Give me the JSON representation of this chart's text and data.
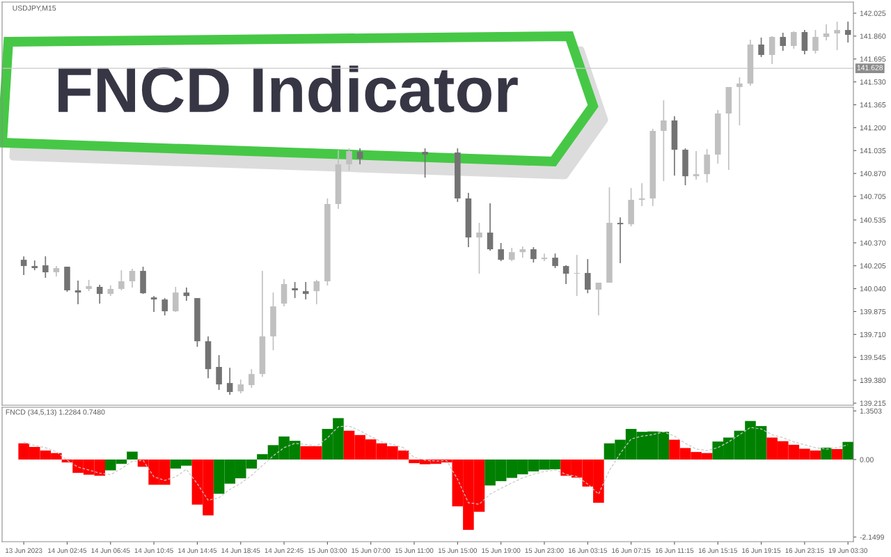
{
  "chart_data": [
    {
      "type": "candlestick",
      "title": "USDJPY,M15",
      "annotations": [
        "FNCD Indicator"
      ],
      "categories": [
        null,
        null,
        null,
        null,
        null,
        null,
        null,
        null,
        null,
        null,
        null,
        null,
        null,
        null,
        null,
        null,
        null,
        null,
        null,
        null,
        null,
        null,
        null,
        null,
        null,
        null,
        null,
        null,
        null,
        null,
        null,
        null,
        null,
        null,
        null,
        null,
        null,
        null,
        null,
        null,
        null,
        null,
        null,
        null,
        null,
        null,
        null,
        null,
        null,
        null,
        null,
        null,
        null,
        null,
        null,
        null,
        null,
        null,
        null,
        null,
        null,
        null,
        null,
        null,
        null,
        null,
        null,
        null,
        null,
        null,
        null,
        null,
        null,
        null,
        null,
        null,
        null
      ],
      "ohlc": [
        [
          140.248,
          140.273,
          140.138,
          140.203
        ],
        [
          140.203,
          140.243,
          140.173,
          140.188
        ],
        [
          140.208,
          140.273,
          140.118,
          140.158
        ],
        [
          140.158,
          140.203,
          140.128,
          140.188
        ],
        [
          140.198,
          140.198,
          140.017,
          140.028
        ],
        [
          140.028,
          140.098,
          139.927,
          140.012
        ],
        [
          140.038,
          140.103,
          140.022,
          140.058
        ],
        [
          140.053,
          140.068,
          139.932,
          140.002
        ],
        [
          140.002,
          140.063,
          139.987,
          140.038
        ],
        [
          140.038,
          140.173,
          140.028,
          140.093
        ],
        [
          140.093,
          140.183,
          140.048,
          140.168
        ],
        [
          140.168,
          140.198,
          140.002,
          140.007
        ],
        [
          139.977,
          139.987,
          139.872,
          139.962
        ],
        [
          139.962,
          139.972,
          139.847,
          139.877
        ],
        [
          139.877,
          140.053,
          139.872,
          140.012
        ],
        [
          140.012,
          140.048,
          139.952,
          139.987
        ],
        [
          139.972,
          139.972,
          139.621,
          139.661
        ],
        [
          139.661,
          139.696,
          139.395,
          139.46
        ],
        [
          139.476,
          139.561,
          139.31,
          139.35
        ],
        [
          139.36,
          139.47,
          139.275,
          139.295
        ],
        [
          139.3,
          139.385,
          139.285,
          139.35
        ],
        [
          139.345,
          139.46,
          139.325,
          139.425
        ],
        [
          139.425,
          140.168,
          139.405,
          139.696
        ],
        [
          139.696,
          140.012,
          139.596,
          139.912
        ],
        [
          139.932,
          140.108,
          139.912,
          140.073
        ],
        [
          140.043,
          140.088,
          139.972,
          140.028
        ],
        [
          140.022,
          140.088,
          139.962,
          140.002
        ],
        [
          140.022,
          140.103,
          139.927,
          140.093
        ],
        [
          140.093,
          140.69,
          140.063,
          140.65
        ],
        [
          140.65,
          141.036,
          140.615,
          140.936
        ],
        [
          140.936,
          141.051,
          140.891,
          141.031
        ],
        [
          141.026,
          141.051,
          140.936,
          140.976
        ],
        null,
        null,
        null,
        null,
        null,
        [
          141.026,
          141.051,
          140.84,
          141.006
        ],
        null,
        null,
        [
          141.021,
          141.051,
          140.665,
          140.69
        ],
        [
          140.69,
          140.73,
          140.339,
          140.409
        ],
        [
          140.409,
          140.514,
          140.148,
          140.444
        ],
        [
          140.444,
          140.655,
          140.314,
          140.324
        ],
        [
          140.324,
          140.369,
          140.238,
          140.248
        ],
        [
          140.248,
          140.334,
          140.238,
          140.303
        ],
        [
          140.303,
          140.344,
          140.263,
          140.324
        ],
        [
          140.324,
          140.339,
          140.228,
          140.253
        ],
        [
          140.253,
          140.293,
          140.238,
          140.263
        ],
        [
          140.263,
          140.293,
          140.188,
          140.203
        ],
        [
          140.203,
          140.208,
          140.073,
          140.148
        ],
        [
          140.148,
          140.283,
          139.987,
          140.153
        ],
        [
          140.153,
          140.253,
          140.007,
          140.033
        ],
        [
          140.033,
          140.083,
          139.847,
          140.083
        ],
        [
          140.083,
          140.77,
          140.083,
          140.514
        ],
        [
          140.514,
          140.554,
          140.223,
          140.504
        ],
        [
          140.504,
          140.765,
          140.489,
          140.68
        ],
        [
          140.68,
          140.8,
          140.635,
          140.69
        ],
        [
          140.69,
          141.192,
          140.635,
          141.177
        ],
        [
          141.177,
          141.397,
          140.815,
          141.252
        ],
        [
          141.252,
          141.282,
          140.855,
          141.041
        ],
        [
          141.041,
          141.051,
          140.785,
          140.85
        ],
        [
          140.85,
          141.031,
          140.825,
          140.865
        ],
        [
          140.865,
          141.046,
          140.805,
          141.006
        ],
        [
          141.006,
          141.327,
          140.941,
          141.302
        ],
        [
          141.302,
          141.493,
          140.896,
          141.493
        ],
        [
          141.493,
          141.563,
          141.217,
          141.518
        ],
        [
          141.518,
          141.834,
          141.503,
          141.799
        ],
        [
          141.799,
          141.849,
          141.709,
          141.724
        ],
        [
          141.724,
          141.859,
          141.658,
          141.854
        ],
        [
          141.854,
          141.884,
          141.754,
          141.789
        ],
        [
          141.789,
          141.894,
          141.769,
          141.889
        ],
        [
          141.889,
          141.904,
          141.729,
          141.754
        ],
        [
          141.754,
          141.904,
          141.734,
          141.854
        ],
        [
          141.854,
          141.944,
          141.829,
          141.879
        ],
        [
          141.879,
          141.964,
          141.759,
          141.904
        ],
        [
          141.904,
          141.964,
          141.814,
          141.869
        ]
      ],
      "colors": [
        "#737373",
        "#737373",
        "#737373",
        "#c0c0c0",
        "#737373",
        "#737373",
        "#c0c0c0",
        "#737373",
        "#c0c0c0",
        "#c0c0c0",
        "#c0c0c0",
        "#737373",
        "#737373",
        "#737373",
        "#c0c0c0",
        "#737373",
        "#737373",
        "#737373",
        "#737373",
        "#737373",
        "#c0c0c0",
        "#c0c0c0",
        "#c0c0c0",
        "#c0c0c0",
        "#c0c0c0",
        "#737373",
        "#737373",
        "#c0c0c0",
        "#c0c0c0",
        "#c0c0c0",
        "#c0c0c0",
        "#737373",
        null,
        null,
        null,
        null,
        null,
        "#737373",
        null,
        null,
        "#737373",
        "#737373",
        "#c0c0c0",
        "#737373",
        "#737373",
        "#c0c0c0",
        "#c0c0c0",
        "#737373",
        "#c0c0c0",
        "#737373",
        "#737373",
        "#c0c0c0",
        "#737373",
        "#c0c0c0",
        "#c0c0c0",
        "#737373",
        "#c0c0c0",
        "#c0c0c0",
        "#c0c0c0",
        "#c0c0c0",
        "#737373",
        "#737373",
        "#c0c0c0",
        "#c0c0c0",
        "#c0c0c0",
        "#c0c0c0",
        "#c0c0c0",
        "#c0c0c0",
        "#737373",
        "#c0c0c0",
        "#737373",
        "#c0c0c0",
        "#737373",
        "#c0c0c0",
        "#c0c0c0",
        "#c0c0c0",
        "#737373"
      ],
      "ylim": [
        139.2,
        142.105
      ],
      "yticks": [
        {
          "value": 142.025,
          "label": "142.025"
        },
        {
          "value": 141.86,
          "label": "141.860"
        },
        {
          "value": 141.695,
          "label": "141.695"
        },
        {
          "value": 141.53,
          "label": "141.530"
        },
        {
          "value": 141.365,
          "label": "141.365"
        },
        {
          "value": 141.2,
          "label": "141.200"
        },
        {
          "value": 141.035,
          "label": "141.035"
        },
        {
          "value": 140.87,
          "label": "140.870"
        },
        {
          "value": 140.705,
          "label": "140.705"
        },
        {
          "value": 140.535,
          "label": "140.535"
        },
        {
          "value": 140.37,
          "label": "140.370"
        },
        {
          "value": 140.205,
          "label": "140.205"
        },
        {
          "value": 140.04,
          "label": "140.040"
        },
        {
          "value": 139.875,
          "label": "139.875"
        },
        {
          "value": 139.71,
          "label": "139.710"
        },
        {
          "value": 139.545,
          "label": "139.545"
        },
        {
          "value": 139.38,
          "label": "139.380"
        },
        {
          "value": 139.215,
          "label": "139.215"
        }
      ],
      "ref_lines": [
        {
          "axis": "y",
          "value": 141.628,
          "label": "141.628",
          "color": "#c8c8c8"
        }
      ],
      "tick_labels": "y"
    },
    {
      "type": "bar",
      "annotations": [
        "FNCD (34,5,13) 1.2284 0.7480"
      ],
      "categories": [
        "13 Jun 2023",
        null,
        null,
        null,
        "14 Jun 02:45",
        null,
        null,
        null,
        "14 Jun 06:45",
        null,
        null,
        null,
        "14 Jun 10:45",
        null,
        null,
        null,
        "14 Jun 14:45",
        null,
        null,
        null,
        "14 Jun 18:45",
        null,
        null,
        null,
        "14 Jun 22:45",
        null,
        null,
        null,
        "15 Jun 03:00",
        null,
        null,
        null,
        "15 Jun 07:00",
        null,
        null,
        null,
        "15 Jun 11:00",
        null,
        null,
        null,
        "15 Jun 15:00",
        null,
        null,
        null,
        "15 Jun 19:00",
        null,
        null,
        null,
        "15 Jun 23:00",
        null,
        null,
        null,
        "16 Jun 03:15",
        null,
        null,
        null,
        "16 Jun 07:15",
        null,
        null,
        null,
        "16 Jun 11:15",
        null,
        null,
        null,
        "16 Jun 15:15",
        null,
        null,
        null,
        "16 Jun 19:15",
        null,
        null,
        null,
        "16 Jun 23:15",
        null,
        null,
        null,
        "19 Jun 03:30"
      ],
      "series": [
        {
          "type": "bar",
          "values": [
            0.45,
            0.35,
            0.25,
            0.18,
            -0.08,
            -0.37,
            -0.42,
            -0.45,
            -0.3,
            -0.12,
            0.22,
            -0.2,
            -0.7,
            -0.7,
            -0.25,
            -0.17,
            -1.25,
            -1.55,
            -0.95,
            -0.67,
            -0.52,
            -0.25,
            0.15,
            0.4,
            0.64,
            0.52,
            0.37,
            0.37,
            0.85,
            1.15,
            0.8,
            0.68,
            0.56,
            0.45,
            0.37,
            0.25,
            -0.1,
            -0.13,
            -0.12,
            -0.08,
            -1.3,
            -1.95,
            -1.45,
            -0.72,
            -0.6,
            -0.51,
            -0.41,
            -0.33,
            -0.28,
            -0.27,
            -0.45,
            -0.5,
            -0.75,
            -1.2,
            0.45,
            0.55,
            0.85,
            0.77,
            0.78,
            0.77,
            0.55,
            0.32,
            0.21,
            0.18,
            0.5,
            0.61,
            0.8,
            1.07,
            0.93,
            0.61,
            0.51,
            0.41,
            0.3,
            0.25,
            0.33,
            0.29,
            0.49
          ],
          "colors": [
            "#ff0000",
            "#ff0000",
            "#ff0000",
            "#ff0000",
            "#ff0000",
            "#ff0000",
            "#ff0000",
            "#ff0000",
            "#008000",
            "#008000",
            "#008000",
            "#ff0000",
            "#ff0000",
            "#ff0000",
            "#008000",
            "#008000",
            "#ff0000",
            "#ff0000",
            "#008000",
            "#008000",
            "#008000",
            "#008000",
            "#008000",
            "#008000",
            "#008000",
            "#008000",
            "#ff0000",
            "#ff0000",
            "#008000",
            "#008000",
            "#ff0000",
            "#ff0000",
            "#ff0000",
            "#ff0000",
            "#ff0000",
            "#ff0000",
            "#ff0000",
            "#ff0000",
            "#ff0000",
            "#ff0000",
            "#ff0000",
            "#ff0000",
            "#ff0000",
            "#008000",
            "#008000",
            "#008000",
            "#008000",
            "#008000",
            "#008000",
            "#008000",
            "#ff0000",
            "#ff0000",
            "#ff0000",
            "#ff0000",
            "#008000",
            "#008000",
            "#008000",
            "#008000",
            "#008000",
            "#008000",
            "#ff0000",
            "#ff0000",
            "#ff0000",
            "#ff0000",
            "#008000",
            "#008000",
            "#008000",
            "#008000",
            "#008000",
            "#ff0000",
            "#ff0000",
            "#ff0000",
            "#ff0000",
            "#ff0000",
            "#008000",
            "#ff0000",
            "#008000"
          ]
        },
        {
          "type": "line",
          "color": "#c8c8c8",
          "line_style": "dashed",
          "values": [
            0.48,
            0.39,
            0.33,
            0.22,
            -0.02,
            -0.21,
            -0.29,
            -0.38,
            -0.42,
            -0.25,
            -0.05,
            -0.02,
            -0.48,
            -0.58,
            -0.48,
            -0.27,
            -0.67,
            -1.13,
            -1.06,
            -0.83,
            -0.66,
            -0.44,
            -0.17,
            0.1,
            0.33,
            0.45,
            0.42,
            0.37,
            0.6,
            0.91,
            0.93,
            0.8,
            0.64,
            0.49,
            0.42,
            0.33,
            0.06,
            -0.02,
            -0.04,
            -0.03,
            -0.55,
            -1.2,
            -1.24,
            -0.96,
            -0.8,
            -0.65,
            -0.51,
            -0.41,
            -0.33,
            -0.29,
            -0.41,
            -0.47,
            -0.68,
            -0.96,
            -0.3,
            0.17,
            0.57,
            0.65,
            0.69,
            0.77,
            0.65,
            0.45,
            0.29,
            0.25,
            0.33,
            0.49,
            0.69,
            0.89,
            0.85,
            0.69,
            0.61,
            0.49,
            0.41,
            0.33,
            0.29,
            0.33,
            0.41
          ]
        }
      ],
      "ylim": [
        -2.28,
        1.45
      ],
      "yticks": [
        {
          "value": 1.3503,
          "label": "1.3503"
        },
        {
          "value": 0,
          "label": "0.00"
        },
        {
          "value": -2.1499,
          "label": "-2.1499"
        }
      ]
    }
  ]
}
